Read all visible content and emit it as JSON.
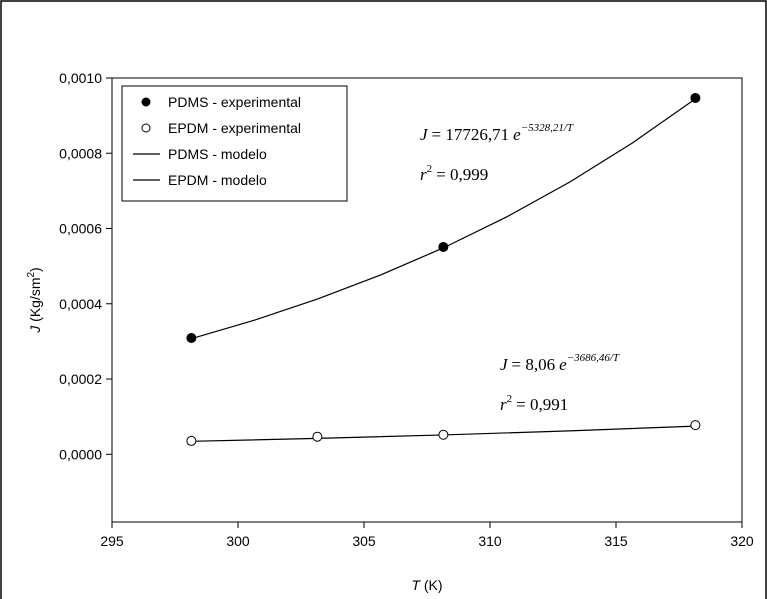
{
  "chart_data": {
    "type": "scatter",
    "x_label": {
      "symbol": "T",
      "unit": "(K)"
    },
    "y_label": {
      "symbol": "J",
      "unit": "(Kg/sm",
      "sup": "2",
      "close": ")"
    },
    "xlim": [
      295,
      320
    ],
    "ylim": [
      -0.00018,
      0.001
    ],
    "xticks": [
      295,
      300,
      305,
      310,
      315,
      320
    ],
    "yticks": [
      {
        "value": 0,
        "label": "0,0000"
      },
      {
        "value": 0.0002,
        "label": "0,0002"
      },
      {
        "value": 0.0004,
        "label": "0,0004"
      },
      {
        "value": 0.0006,
        "label": "0,0006"
      },
      {
        "value": 0.0008,
        "label": "0,0008"
      },
      {
        "value": 0.001,
        "label": "0,0010"
      }
    ],
    "legend": "upper left",
    "series": [
      {
        "name": "PDMS - experimental",
        "kind": "marker",
        "fill": "#000000",
        "color": "#000000",
        "x": [
          298.15,
          308.15,
          318.15
        ],
        "values": [
          0.000309,
          0.000551,
          0.000947
        ]
      },
      {
        "name": "EPDM - experimental",
        "kind": "marker",
        "fill": "#ffffff",
        "color": "#000000",
        "x": [
          298.15,
          303.15,
          308.15,
          318.15
        ],
        "values": [
          3.55e-05,
          4.67e-05,
          5.19e-05,
          7.75e-05
        ]
      },
      {
        "name": "PDMS - modelo",
        "kind": "line",
        "color": "#000000",
        "x": [
          298.15,
          300.65,
          303.15,
          305.65,
          308.15,
          310.65,
          313.15,
          315.65,
          318.15
        ],
        "values": [
          0.00030719,
          0.00035638,
          0.00041243,
          0.00047624,
          0.00054857,
          0.0006305,
          0.000723,
          0.00082737,
          0.00094466
        ]
      },
      {
        "name": "EPDM - modelo",
        "kind": "line",
        "color": "#000000",
        "x": [
          298.15,
          303.15,
          308.15,
          313.15,
          318.15
        ],
        "values": [
          3.4397e-05,
          4.2175e-05,
          5.138e-05,
          6.2189e-05,
          7.483e-05
        ]
      }
    ],
    "annotations": [
      {
        "symbol": "J",
        "coef": "= 17726,71",
        "base": "e",
        "exponent": "−5328,21/T",
        "r": "r",
        "r_sup": "2",
        "r_value": "= 0,999"
      },
      {
        "symbol": "J",
        "coef": "= 8,06",
        "base": "e",
        "exponent": "−3686,46/T",
        "r": "r",
        "r_sup": "2",
        "r_value": "= 0,991"
      }
    ]
  }
}
